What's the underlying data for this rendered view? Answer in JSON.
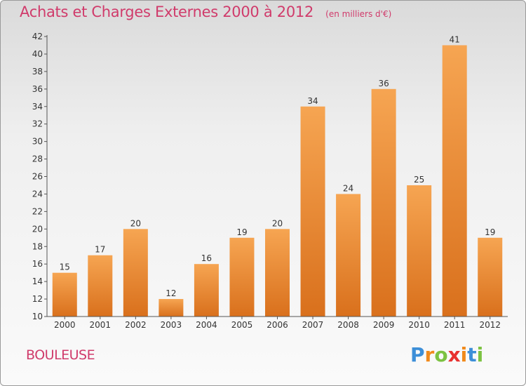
{
  "header": {
    "title": "Achats et Charges Externes 2000 à 2012",
    "unit": "(en milliers d'€)"
  },
  "footer": {
    "commune": "BOULEUSE",
    "logo_letters": [
      "P",
      "r",
      "o",
      "x",
      "i",
      "t",
      "i"
    ],
    "logo_colors": [
      "#3d8fd8",
      "#f08a1c",
      "#7cc242",
      "#e8312f",
      "#f08a1c",
      "#3d8fd8",
      "#7cc242"
    ]
  },
  "colors": {
    "bar_light": "#f6a552",
    "bar_dark": "#d9701c",
    "axis": "#555555",
    "text": "#333333",
    "accent": "#d03b6b"
  },
  "chart_data": {
    "type": "bar",
    "title": "Achats et Charges Externes 2000 à 2012",
    "categories": [
      "2000",
      "2001",
      "2002",
      "2003",
      "2004",
      "2005",
      "2006",
      "2007",
      "2008",
      "2009",
      "2010",
      "2011",
      "2012"
    ],
    "values": [
      15,
      17,
      20,
      12,
      16,
      19,
      20,
      34,
      24,
      36,
      25,
      41,
      19
    ],
    "ylim": [
      10,
      42
    ],
    "yticks": [
      10,
      12,
      14,
      16,
      18,
      20,
      22,
      24,
      26,
      28,
      30,
      32,
      34,
      36,
      38,
      40,
      42
    ],
    "grid": false
  }
}
